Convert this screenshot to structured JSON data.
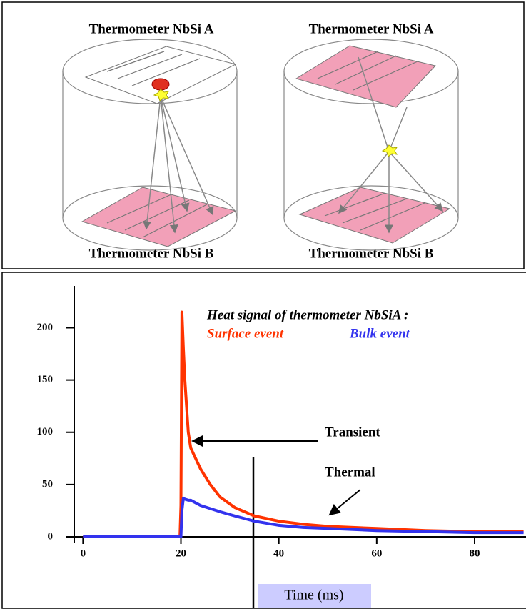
{
  "diagram": {
    "labels": [
      "Thermometer NbSi A",
      "Thermometer NbSi A",
      "Thermometer NbSi B",
      "Thermometer NbSi B"
    ]
  },
  "chart_data": {
    "type": "line",
    "title": "Heat signal of thermometer NbSiA :",
    "xlabel": "Time (ms)",
    "annotations": [
      "Transient",
      "Thermal"
    ],
    "x": [
      0,
      10,
      19.8,
      20,
      20.2,
      20.5,
      20.8,
      21.5,
      22,
      24,
      26,
      28,
      31,
      35,
      40,
      45,
      50,
      60,
      70,
      80,
      90
    ],
    "series": [
      {
        "name": "Surface event",
        "color": "#ff3300",
        "values": [
          0,
          0,
          0,
          30,
          215,
          180,
          150,
          100,
          85,
          65,
          50,
          38,
          28,
          20,
          15,
          12,
          10,
          8,
          6,
          5,
          5
        ]
      },
      {
        "name": "Bulk event",
        "color": "#3333ee",
        "values": [
          0,
          0,
          0,
          0,
          25,
          37,
          36,
          35,
          35,
          30,
          27,
          24,
          20,
          15,
          11,
          9,
          8,
          6,
          5,
          4,
          4
        ]
      }
    ],
    "xlim": [
      -1.8,
      90.5
    ],
    "ylim": [
      0,
      240
    ],
    "xticks": [
      0,
      20,
      40,
      60,
      80
    ],
    "yticks": [
      0,
      50,
      100,
      150,
      200
    ]
  }
}
